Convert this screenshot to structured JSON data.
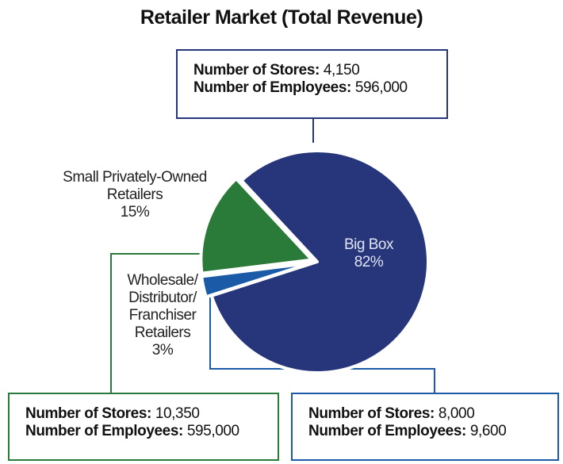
{
  "chart_data": {
    "type": "pie",
    "title": "Retailer Market (Total Revenue)",
    "categories": [
      "Big Box",
      "Wholesale/\nDistributor/\nFranchiser\nRetailers",
      "Small Privately-Owned\nRetailers"
    ],
    "values": [
      82,
      3,
      15
    ],
    "value_labels": [
      "82%",
      "3%",
      "15%"
    ],
    "colors": [
      "#27367a",
      "#1b5aa6",
      "#2a7a3a"
    ]
  },
  "callouts": [
    {
      "lines": [
        {
          "label": "Number of Stores:",
          "value": "4,150"
        },
        {
          "label": "Number of Employees:",
          "value": "596,000"
        }
      ]
    },
    {
      "lines": [
        {
          "label": "Number of Stores:",
          "value": "8,000"
        },
        {
          "label": "Number of Employees:",
          "value": "9,600"
        }
      ]
    },
    {
      "lines": [
        {
          "label": "Number of Stores:",
          "value": "10,350"
        },
        {
          "label": "Number of Employees:",
          "value": "595,000"
        }
      ]
    }
  ]
}
